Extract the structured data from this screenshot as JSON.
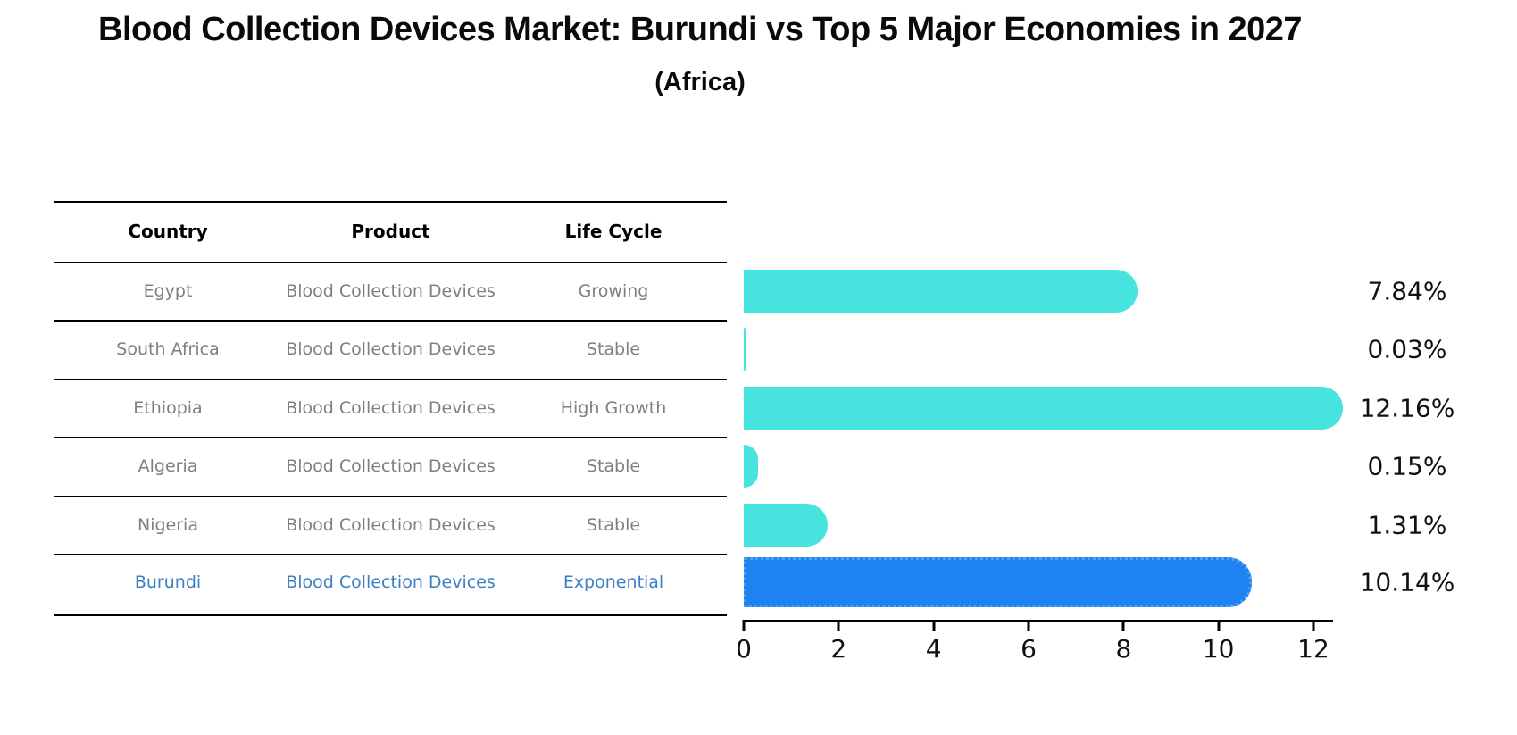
{
  "title": "Blood Collection Devices Market: Burundi vs Top 5 Major Economies in 2027",
  "subtitle": "(Africa)",
  "colors": {
    "bar_default": "#47E4DF",
    "bar_highlight": "#1E82F0",
    "bar_highlight_border": "#4D9EF8",
    "highlight_text": "#3B7FC4",
    "table_text": "#7F7F7F",
    "table_header_text": "#000000",
    "axis": "#000000",
    "value_label_text": "#111111"
  },
  "table": {
    "headers": [
      "Country",
      "Product",
      "Life Cycle"
    ],
    "rows": [
      {
        "country": "Egypt",
        "product": "Blood Collection Devices",
        "life_cycle": "Growing",
        "highlight": false
      },
      {
        "country": "South Africa",
        "product": "Blood Collection Devices",
        "life_cycle": "Stable",
        "highlight": false
      },
      {
        "country": "Ethiopia",
        "product": "Blood Collection Devices",
        "life_cycle": "High Growth",
        "highlight": false
      },
      {
        "country": "Algeria",
        "product": "Blood Collection Devices",
        "life_cycle": "Stable",
        "highlight": false
      },
      {
        "country": "Nigeria",
        "product": "Blood Collection Devices",
        "life_cycle": "Stable",
        "highlight": false
      },
      {
        "country": "Burundi",
        "product": "Blood Collection Devices",
        "life_cycle": "Exponential",
        "highlight": true
      }
    ]
  },
  "chart_data": {
    "type": "bar",
    "orientation": "horizontal",
    "title": "Blood Collection Devices Market: Burundi vs Top 5 Major Economies in 2027 (Africa)",
    "categories": [
      "Egypt",
      "South Africa",
      "Ethiopia",
      "Algeria",
      "Nigeria",
      "Burundi"
    ],
    "values": [
      7.84,
      0.03,
      12.16,
      0.15,
      1.31,
      10.14
    ],
    "value_labels": [
      "7.84%",
      "0.03%",
      "12.16%",
      "0.15%",
      "1.31%",
      "10.14%"
    ],
    "unit": "%",
    "xlim": [
      0,
      12.4
    ],
    "xticks": [
      0,
      2,
      4,
      6,
      8,
      10,
      12
    ],
    "xtick_labels": [
      "0",
      "2",
      "4",
      "6",
      "8",
      "10",
      "12"
    ],
    "highlight_index": 5,
    "grid": false,
    "legend": false
  }
}
